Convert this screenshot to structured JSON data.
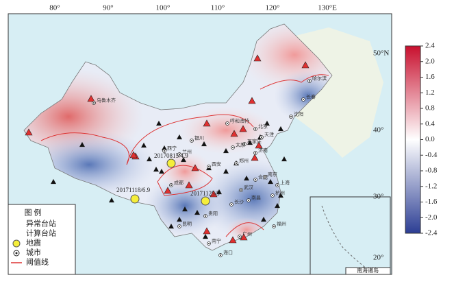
{
  "map": {
    "lon_labels": [
      "80°",
      "90°",
      "100°",
      "110°",
      "120°",
      "130°E"
    ],
    "lat_labels": [
      "50°N",
      "40°",
      "30°",
      "20°"
    ],
    "colorbar": {
      "lim": [
        -2.4,
        2.4
      ],
      "ticks": [
        2.4,
        {
          "value": 2,
          "label": "2.0"
        },
        1.6,
        1.2,
        0.8,
        0.4,
        {
          "value": 0,
          "label": "0.0"
        },
        -0.4,
        -0.8,
        -1.2,
        -1.6,
        {
          "value": -2,
          "label": "-2.0"
        },
        -2.4
      ]
    },
    "legend": {
      "title": "图 例",
      "items": [
        "异常台站",
        "计算台站",
        "地震",
        "城市",
        "阈值线"
      ]
    },
    "earthquakes": [
      "20171118/6.9",
      "20170815/4.9",
      "20171125/5"
    ],
    "cities": [
      "乌鲁木齐",
      "哈尔滨",
      "长春",
      "沈阳",
      "呼和浩特",
      "北京",
      "天津",
      "石家庄",
      "太原",
      "济南",
      "郑州",
      "西安",
      "兰州",
      "西宁",
      "银川",
      "合肥",
      "南京",
      "上海",
      "武汉",
      "杭州",
      "长沙",
      "南昌",
      "贵阳",
      "昆明",
      "福州",
      "广州",
      "南宁",
      "海口",
      "成都"
    ],
    "inset_label": "南海诸岛"
  }
}
